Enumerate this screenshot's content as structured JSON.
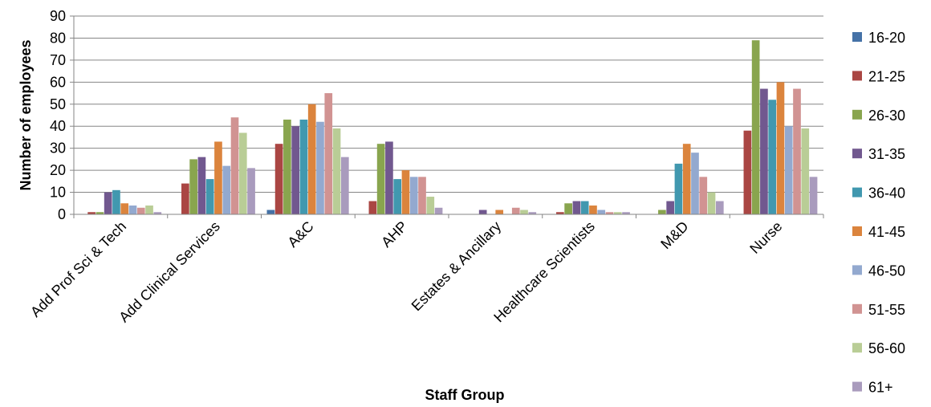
{
  "chart_data": {
    "type": "bar",
    "title": "",
    "xlabel": "Staff Group",
    "ylabel": "Number of employees",
    "ylim": [
      0,
      90
    ],
    "yticks": [
      0,
      10,
      20,
      30,
      40,
      50,
      60,
      70,
      80,
      90
    ],
    "grid": true,
    "legend_position": "right",
    "categories": [
      "Add Prof Sci & Tech",
      "Add Clinical Services",
      "A&C",
      "AHP",
      "Estates & Ancillary",
      "Healthcare Scientists",
      "M&D",
      "Nurse"
    ],
    "series": [
      {
        "name": "16-20",
        "color": "#4572A7",
        "values": [
          0,
          0,
          2,
          0,
          0,
          0,
          0,
          0
        ]
      },
      {
        "name": "21-25",
        "color": "#AA4643",
        "values": [
          1,
          14,
          32,
          6,
          0,
          1,
          0,
          38
        ]
      },
      {
        "name": "26-30",
        "color": "#89A54E",
        "values": [
          1,
          25,
          43,
          32,
          0,
          5,
          2,
          79
        ]
      },
      {
        "name": "31-35",
        "color": "#71588F",
        "values": [
          10,
          26,
          40,
          33,
          2,
          6,
          6,
          57
        ]
      },
      {
        "name": "36-40",
        "color": "#4198AF",
        "values": [
          11,
          16,
          43,
          16,
          0,
          6,
          23,
          52
        ]
      },
      {
        "name": "41-45",
        "color": "#DB843D",
        "values": [
          5,
          33,
          50,
          20,
          2,
          4,
          32,
          60
        ]
      },
      {
        "name": "46-50",
        "color": "#93A9CF",
        "values": [
          4,
          22,
          42,
          17,
          0,
          2,
          28,
          40
        ]
      },
      {
        "name": "51-55",
        "color": "#D19392",
        "values": [
          3,
          44,
          55,
          17,
          3,
          1,
          17,
          57
        ]
      },
      {
        "name": "56-60",
        "color": "#B9CD96",
        "values": [
          4,
          37,
          39,
          8,
          2,
          1,
          10,
          39
        ]
      },
      {
        "name": "61+",
        "color": "#A99BBD",
        "values": [
          1,
          21,
          26,
          3,
          1,
          1,
          6,
          17
        ]
      }
    ]
  }
}
